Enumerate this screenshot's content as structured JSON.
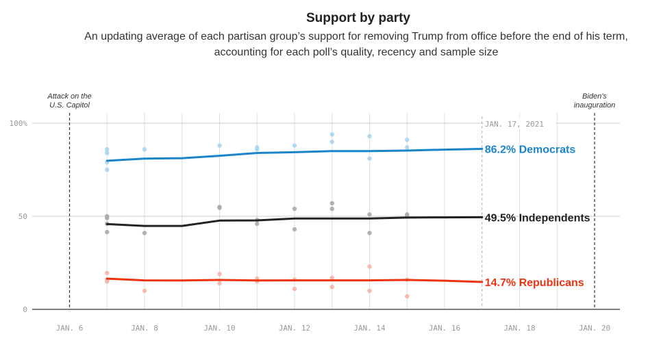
{
  "chart_data": {
    "type": "line",
    "title": "Support by party",
    "subtitle": "An updating average of each partisan group’s support for removing Trump from office before the end of his term, accounting for each poll’s quality, recency and sample size",
    "xlabel": "",
    "ylabel": "",
    "x_range_days": [
      6,
      20
    ],
    "ylim": [
      0,
      100
    ],
    "y_ticks": [
      0,
      50,
      100
    ],
    "y_tick_labels": [
      "0",
      "50",
      "100%"
    ],
    "x_ticks": [
      6,
      8,
      10,
      12,
      14,
      16,
      18,
      20
    ],
    "x_tick_labels": [
      "JAN. 6",
      "JAN. 8",
      "JAN. 10",
      "JAN. 12",
      "JAN. 14",
      "JAN. 16",
      "JAN. 18",
      "JAN. 20"
    ],
    "current_date_day": 17,
    "current_date_label": "JAN. 17, 2021",
    "events": [
      {
        "day": 6,
        "label_line1": "Attack on the",
        "label_line2": "U.S. Capitol"
      },
      {
        "day": 20,
        "label_line1": "Biden’s",
        "label_line2": "inauguration"
      }
    ],
    "series": [
      {
        "name": "Democrats",
        "label": "86.2% Democrats",
        "final_value": 86.2,
        "color": "#1a86c9",
        "dot_color": "#a9d6ef",
        "line": [
          [
            7,
            79.8
          ],
          [
            8,
            81
          ],
          [
            9,
            81.2
          ],
          [
            10,
            82.5
          ],
          [
            11,
            84
          ],
          [
            12,
            84.4
          ],
          [
            13,
            85
          ],
          [
            14,
            85
          ],
          [
            15,
            85.3
          ],
          [
            16,
            85.8
          ],
          [
            17,
            86.2
          ]
        ],
        "polls": [
          [
            7,
            86
          ],
          [
            7,
            84
          ],
          [
            7,
            79
          ],
          [
            7,
            75
          ],
          [
            8,
            86
          ],
          [
            10,
            88
          ],
          [
            11,
            87
          ],
          [
            11,
            86
          ],
          [
            12,
            88
          ],
          [
            13,
            94
          ],
          [
            13,
            90
          ],
          [
            14,
            93
          ],
          [
            14,
            81
          ],
          [
            15,
            91
          ],
          [
            15,
            87
          ]
        ]
      },
      {
        "name": "Independents",
        "label": "49.5% Independents",
        "final_value": 49.5,
        "color": "#222222",
        "dot_color": "#aaaaaa",
        "line": [
          [
            7,
            45.8
          ],
          [
            8,
            44.8
          ],
          [
            9,
            44.8
          ],
          [
            10,
            47.7
          ],
          [
            11,
            47.8
          ],
          [
            12,
            48.8
          ],
          [
            13,
            48.8
          ],
          [
            14,
            48.8
          ],
          [
            15,
            49.3
          ],
          [
            16,
            49.4
          ],
          [
            17,
            49.5
          ]
        ],
        "polls": [
          [
            7,
            50
          ],
          [
            7,
            49
          ],
          [
            7,
            46
          ],
          [
            7,
            41.5
          ],
          [
            8,
            41
          ],
          [
            10,
            55
          ],
          [
            10,
            54.5
          ],
          [
            11,
            48
          ],
          [
            11,
            46
          ],
          [
            12,
            54
          ],
          [
            12,
            43
          ],
          [
            13,
            57
          ],
          [
            13,
            54
          ],
          [
            14,
            51
          ],
          [
            14,
            41
          ],
          [
            15,
            51
          ],
          [
            15,
            50
          ]
        ]
      },
      {
        "name": "Republicans",
        "label": "14.7% Republicans",
        "final_value": 14.7,
        "color": "#ee3311",
        "dot_color": "#f5b5a6",
        "line": [
          [
            7,
            16.5
          ],
          [
            8,
            15.6
          ],
          [
            9,
            15.5
          ],
          [
            10,
            15.8
          ],
          [
            11,
            15.5
          ],
          [
            12,
            15.6
          ],
          [
            13,
            15.6
          ],
          [
            14,
            15.6
          ],
          [
            15,
            15.8
          ],
          [
            16,
            15.4
          ],
          [
            17,
            14.7
          ]
        ],
        "polls": [
          [
            7,
            19.5
          ],
          [
            7,
            16
          ],
          [
            7,
            15
          ],
          [
            8,
            10
          ],
          [
            10,
            19
          ],
          [
            10,
            14
          ],
          [
            11,
            16.5
          ],
          [
            11,
            15
          ],
          [
            12,
            16
          ],
          [
            12,
            11
          ],
          [
            13,
            17
          ],
          [
            13,
            12
          ],
          [
            14,
            23
          ],
          [
            14,
            10
          ],
          [
            15,
            16
          ],
          [
            15,
            7
          ]
        ]
      }
    ]
  }
}
